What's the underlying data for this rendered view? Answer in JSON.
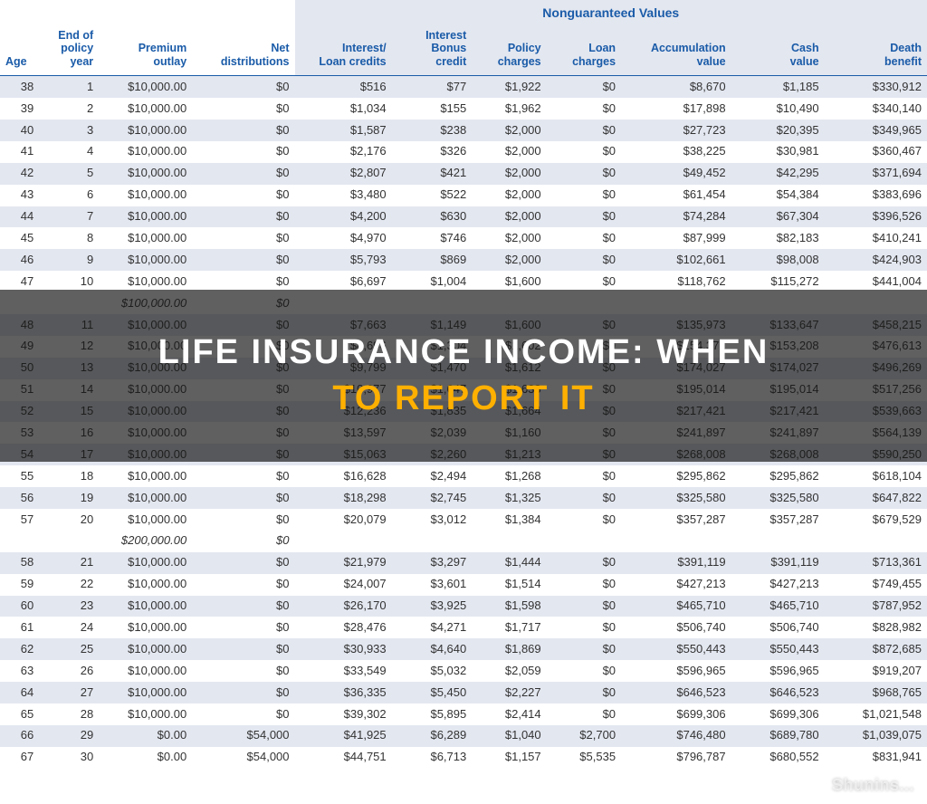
{
  "header": {
    "group_label": "Nonguaranteed Values",
    "columns": [
      "Age",
      "End of\npolicy\nyear",
      "Premium\noutlay",
      "Net\ndistributions",
      "Interest/\nLoan credits",
      "Interest\nBonus\ncredit",
      "Policy\ncharges",
      "Loan\ncharges",
      "Accumulation\nvalue",
      "Cash\nvalue",
      "Death\nbenefit"
    ]
  },
  "styling": {
    "header_color": "#1a5ba8",
    "alt_row_bg": "#e3e7f0",
    "nong_bg": "#e3e7f0",
    "text_color": "#333333",
    "header_font_size": 12.5,
    "body_font_size": 13,
    "italic_subtotal": true
  },
  "overlay": {
    "line1": "LIFE INSURANCE INCOME: WHEN",
    "line2": "TO REPORT IT",
    "line1_color": "#ffffff",
    "line2_color": "#ffb000",
    "bg": "rgba(20,20,20,0.68)",
    "font_size": 38
  },
  "watermark": "Shunins...",
  "rows": [
    {
      "age": "38",
      "year": "1",
      "prem": "$10,000.00",
      "dist": "$0",
      "int": "$516",
      "bonus": "$77",
      "polc": "$1,922",
      "loan": "$0",
      "accum": "$8,670",
      "cash": "$1,185",
      "death": "$330,912",
      "alt": true
    },
    {
      "age": "39",
      "year": "2",
      "prem": "$10,000.00",
      "dist": "$0",
      "int": "$1,034",
      "bonus": "$155",
      "polc": "$1,962",
      "loan": "$0",
      "accum": "$17,898",
      "cash": "$10,490",
      "death": "$340,140"
    },
    {
      "age": "40",
      "year": "3",
      "prem": "$10,000.00",
      "dist": "$0",
      "int": "$1,587",
      "bonus": "$238",
      "polc": "$2,000",
      "loan": "$0",
      "accum": "$27,723",
      "cash": "$20,395",
      "death": "$349,965",
      "alt": true
    },
    {
      "age": "41",
      "year": "4",
      "prem": "$10,000.00",
      "dist": "$0",
      "int": "$2,176",
      "bonus": "$326",
      "polc": "$2,000",
      "loan": "$0",
      "accum": "$38,225",
      "cash": "$30,981",
      "death": "$360,467"
    },
    {
      "age": "42",
      "year": "5",
      "prem": "$10,000.00",
      "dist": "$0",
      "int": "$2,807",
      "bonus": "$421",
      "polc": "$2,000",
      "loan": "$0",
      "accum": "$49,452",
      "cash": "$42,295",
      "death": "$371,694",
      "alt": true
    },
    {
      "age": "43",
      "year": "6",
      "prem": "$10,000.00",
      "dist": "$0",
      "int": "$3,480",
      "bonus": "$522",
      "polc": "$2,000",
      "loan": "$0",
      "accum": "$61,454",
      "cash": "$54,384",
      "death": "$383,696"
    },
    {
      "age": "44",
      "year": "7",
      "prem": "$10,000.00",
      "dist": "$0",
      "int": "$4,200",
      "bonus": "$630",
      "polc": "$2,000",
      "loan": "$0",
      "accum": "$74,284",
      "cash": "$67,304",
      "death": "$396,526",
      "alt": true
    },
    {
      "age": "45",
      "year": "8",
      "prem": "$10,000.00",
      "dist": "$0",
      "int": "$4,970",
      "bonus": "$746",
      "polc": "$2,000",
      "loan": "$0",
      "accum": "$87,999",
      "cash": "$82,183",
      "death": "$410,241"
    },
    {
      "age": "46",
      "year": "9",
      "prem": "$10,000.00",
      "dist": "$0",
      "int": "$5,793",
      "bonus": "$869",
      "polc": "$2,000",
      "loan": "$0",
      "accum": "$102,661",
      "cash": "$98,008",
      "death": "$424,903",
      "alt": true
    },
    {
      "age": "47",
      "year": "10",
      "prem": "$10,000.00",
      "dist": "$0",
      "int": "$6,697",
      "bonus": "$1,004",
      "polc": "$1,600",
      "loan": "$0",
      "accum": "$118,762",
      "cash": "$115,272",
      "death": "$441,004"
    },
    {
      "subtotal": true,
      "age": "",
      "year": "",
      "prem": "$100,000.00",
      "dist": "$0",
      "int": "",
      "bonus": "",
      "polc": "",
      "loan": "",
      "accum": "",
      "cash": "",
      "death": ""
    },
    {
      "age": "48",
      "year": "11",
      "prem": "$10,000.00",
      "dist": "$0",
      "int": "$7,663",
      "bonus": "$1,149",
      "polc": "$1,600",
      "loan": "$0",
      "accum": "$135,973",
      "cash": "$133,647",
      "death": "$458,215",
      "alt": true
    },
    {
      "age": "49",
      "year": "12",
      "prem": "$10,000.00",
      "dist": "$0",
      "int": "$8,696",
      "bonus": "$1,304",
      "polc": "$1,602",
      "loan": "$0",
      "accum": "$154,371",
      "cash": "$153,208",
      "death": "$476,613"
    },
    {
      "age": "50",
      "year": "13",
      "prem": "$10,000.00",
      "dist": "$0",
      "int": "$9,799",
      "bonus": "$1,470",
      "polc": "$1,612",
      "loan": "$0",
      "accum": "$174,027",
      "cash": "$174,027",
      "death": "$496,269",
      "alt": true
    },
    {
      "age": "51",
      "year": "14",
      "prem": "$10,000.00",
      "dist": "$0",
      "int": "$10,977",
      "bonus": "$1,647",
      "polc": "$1,638",
      "loan": "$0",
      "accum": "$195,014",
      "cash": "$195,014",
      "death": "$517,256"
    },
    {
      "age": "52",
      "year": "15",
      "prem": "$10,000.00",
      "dist": "$0",
      "int": "$12,236",
      "bonus": "$1,835",
      "polc": "$1,664",
      "loan": "$0",
      "accum": "$217,421",
      "cash": "$217,421",
      "death": "$539,663",
      "alt": true
    },
    {
      "age": "53",
      "year": "16",
      "prem": "$10,000.00",
      "dist": "$0",
      "int": "$13,597",
      "bonus": "$2,039",
      "polc": "$1,160",
      "loan": "$0",
      "accum": "$241,897",
      "cash": "$241,897",
      "death": "$564,139"
    },
    {
      "age": "54",
      "year": "17",
      "prem": "$10,000.00",
      "dist": "$0",
      "int": "$15,063",
      "bonus": "$2,260",
      "polc": "$1,213",
      "loan": "$0",
      "accum": "$268,008",
      "cash": "$268,008",
      "death": "$590,250",
      "alt": true
    },
    {
      "age": "55",
      "year": "18",
      "prem": "$10,000.00",
      "dist": "$0",
      "int": "$16,628",
      "bonus": "$2,494",
      "polc": "$1,268",
      "loan": "$0",
      "accum": "$295,862",
      "cash": "$295,862",
      "death": "$618,104"
    },
    {
      "age": "56",
      "year": "19",
      "prem": "$10,000.00",
      "dist": "$0",
      "int": "$18,298",
      "bonus": "$2,745",
      "polc": "$1,325",
      "loan": "$0",
      "accum": "$325,580",
      "cash": "$325,580",
      "death": "$647,822",
      "alt": true
    },
    {
      "age": "57",
      "year": "20",
      "prem": "$10,000.00",
      "dist": "$0",
      "int": "$20,079",
      "bonus": "$3,012",
      "polc": "$1,384",
      "loan": "$0",
      "accum": "$357,287",
      "cash": "$357,287",
      "death": "$679,529"
    },
    {
      "subtotal": true,
      "age": "",
      "year": "",
      "prem": "$200,000.00",
      "dist": "$0",
      "int": "",
      "bonus": "",
      "polc": "",
      "loan": "",
      "accum": "",
      "cash": "",
      "death": ""
    },
    {
      "age": "58",
      "year": "21",
      "prem": "$10,000.00",
      "dist": "$0",
      "int": "$21,979",
      "bonus": "$3,297",
      "polc": "$1,444",
      "loan": "$0",
      "accum": "$391,119",
      "cash": "$391,119",
      "death": "$713,361",
      "alt": true
    },
    {
      "age": "59",
      "year": "22",
      "prem": "$10,000.00",
      "dist": "$0",
      "int": "$24,007",
      "bonus": "$3,601",
      "polc": "$1,514",
      "loan": "$0",
      "accum": "$427,213",
      "cash": "$427,213",
      "death": "$749,455"
    },
    {
      "age": "60",
      "year": "23",
      "prem": "$10,000.00",
      "dist": "$0",
      "int": "$26,170",
      "bonus": "$3,925",
      "polc": "$1,598",
      "loan": "$0",
      "accum": "$465,710",
      "cash": "$465,710",
      "death": "$787,952",
      "alt": true
    },
    {
      "age": "61",
      "year": "24",
      "prem": "$10,000.00",
      "dist": "$0",
      "int": "$28,476",
      "bonus": "$4,271",
      "polc": "$1,717",
      "loan": "$0",
      "accum": "$506,740",
      "cash": "$506,740",
      "death": "$828,982"
    },
    {
      "age": "62",
      "year": "25",
      "prem": "$10,000.00",
      "dist": "$0",
      "int": "$30,933",
      "bonus": "$4,640",
      "polc": "$1,869",
      "loan": "$0",
      "accum": "$550,443",
      "cash": "$550,443",
      "death": "$872,685",
      "alt": true
    },
    {
      "age": "63",
      "year": "26",
      "prem": "$10,000.00",
      "dist": "$0",
      "int": "$33,549",
      "bonus": "$5,032",
      "polc": "$2,059",
      "loan": "$0",
      "accum": "$596,965",
      "cash": "$596,965",
      "death": "$919,207"
    },
    {
      "age": "64",
      "year": "27",
      "prem": "$10,000.00",
      "dist": "$0",
      "int": "$36,335",
      "bonus": "$5,450",
      "polc": "$2,227",
      "loan": "$0",
      "accum": "$646,523",
      "cash": "$646,523",
      "death": "$968,765",
      "alt": true
    },
    {
      "age": "65",
      "year": "28",
      "prem": "$10,000.00",
      "dist": "$0",
      "int": "$39,302",
      "bonus": "$5,895",
      "polc": "$2,414",
      "loan": "$0",
      "accum": "$699,306",
      "cash": "$699,306",
      "death": "$1,021,548"
    },
    {
      "age": "66",
      "year": "29",
      "prem": "$0.00",
      "dist": "$54,000",
      "int": "$41,925",
      "bonus": "$6,289",
      "polc": "$1,040",
      "loan": "$2,700",
      "accum": "$746,480",
      "cash": "$689,780",
      "death": "$1,039,075",
      "alt": true
    },
    {
      "age": "67",
      "year": "30",
      "prem": "$0.00",
      "dist": "$54,000",
      "int": "$44,751",
      "bonus": "$6,713",
      "polc": "$1,157",
      "loan": "$5,535",
      "accum": "$796,787",
      "cash": "$680,552",
      "death": "$831,941"
    }
  ]
}
